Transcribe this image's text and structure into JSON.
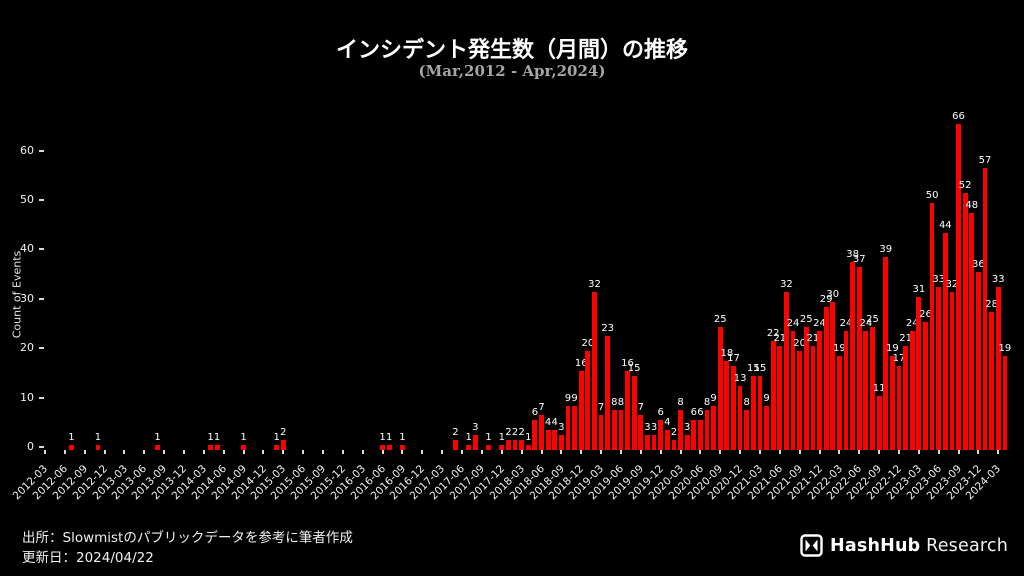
{
  "title": "インシデント発生数（月間）の推移",
  "subtitle": "(Mar,2012 - Apr,2024)",
  "footer": {
    "source_line": "出所：Slowmistのパブリックデータを参考に筆者作成",
    "updated_line": "更新日：2024/04/22"
  },
  "logo": {
    "brand": "HashHub",
    "suffix": "Research"
  },
  "colors": {
    "background": "#000000",
    "bar": "#ff0000",
    "text": "#ffffff",
    "subtitle": "#a6a6a6"
  },
  "chart_data": {
    "type": "bar",
    "title": "インシデント発生数（月間）の推移",
    "subtitle": "(Mar,2012 - Apr,2024)",
    "xlabel": "",
    "ylabel": "Count of Events",
    "ylim": [
      0,
      70
    ],
    "yticks": [
      0,
      10,
      20,
      30,
      40,
      50,
      60
    ],
    "x_start": "2012-03",
    "x_end": "2024-04",
    "xtick_every_months": 3,
    "grid": false,
    "legend": false,
    "values": {
      "2012-07": 1,
      "2012-11": 1,
      "2013-08": 1,
      "2014-04": 1,
      "2014-05": 1,
      "2014-09": 1,
      "2015-02": 1,
      "2015-03": 2,
      "2016-06": 1,
      "2016-07": 1,
      "2016-09": 1,
      "2017-05": 2,
      "2017-07": 1,
      "2017-08": 3,
      "2017-10": 1,
      "2017-12": 1,
      "2018-01": 2,
      "2018-02": 2,
      "2018-03": 2,
      "2018-04": 1,
      "2018-05": 6,
      "2018-06": 7,
      "2018-07": 4,
      "2018-08": 4,
      "2018-09": 3,
      "2018-10": 9,
      "2018-11": 9,
      "2018-12": 16,
      "2019-01": 20,
      "2019-02": 32,
      "2019-03": 7,
      "2019-04": 23,
      "2019-05": 8,
      "2019-06": 8,
      "2019-07": 16,
      "2019-08": 15,
      "2019-09": 7,
      "2019-10": 3,
      "2019-11": 3,
      "2019-12": 6,
      "2020-01": 4,
      "2020-02": 2,
      "2020-03": 8,
      "2020-04": 3,
      "2020-05": 6,
      "2020-06": 6,
      "2020-07": 8,
      "2020-08": 9,
      "2020-09": 25,
      "2020-10": 18,
      "2020-11": 17,
      "2020-12": 13,
      "2021-01": 8,
      "2021-02": 15,
      "2021-03": 15,
      "2021-04": 9,
      "2021-05": 22,
      "2021-06": 21,
      "2021-07": 32,
      "2021-08": 24,
      "2021-09": 20,
      "2021-10": 25,
      "2021-11": 21,
      "2021-12": 24,
      "2022-01": 29,
      "2022-02": 30,
      "2022-03": 19,
      "2022-04": 24,
      "2022-05": 38,
      "2022-06": 37,
      "2022-07": 24,
      "2022-08": 25,
      "2022-09": 11,
      "2022-10": 39,
      "2022-11": 19,
      "2022-12": 17,
      "2023-01": 21,
      "2023-02": 24,
      "2023-03": 31,
      "2023-04": 26,
      "2023-05": 50,
      "2023-06": 33,
      "2023-07": 44,
      "2023-08": 32,
      "2023-09": 66,
      "2023-10": 52,
      "2023-11": 48,
      "2023-12": 36,
      "2024-01": 57,
      "2024-02": 28,
      "2024-03": 33,
      "2024-04": 19
    }
  }
}
